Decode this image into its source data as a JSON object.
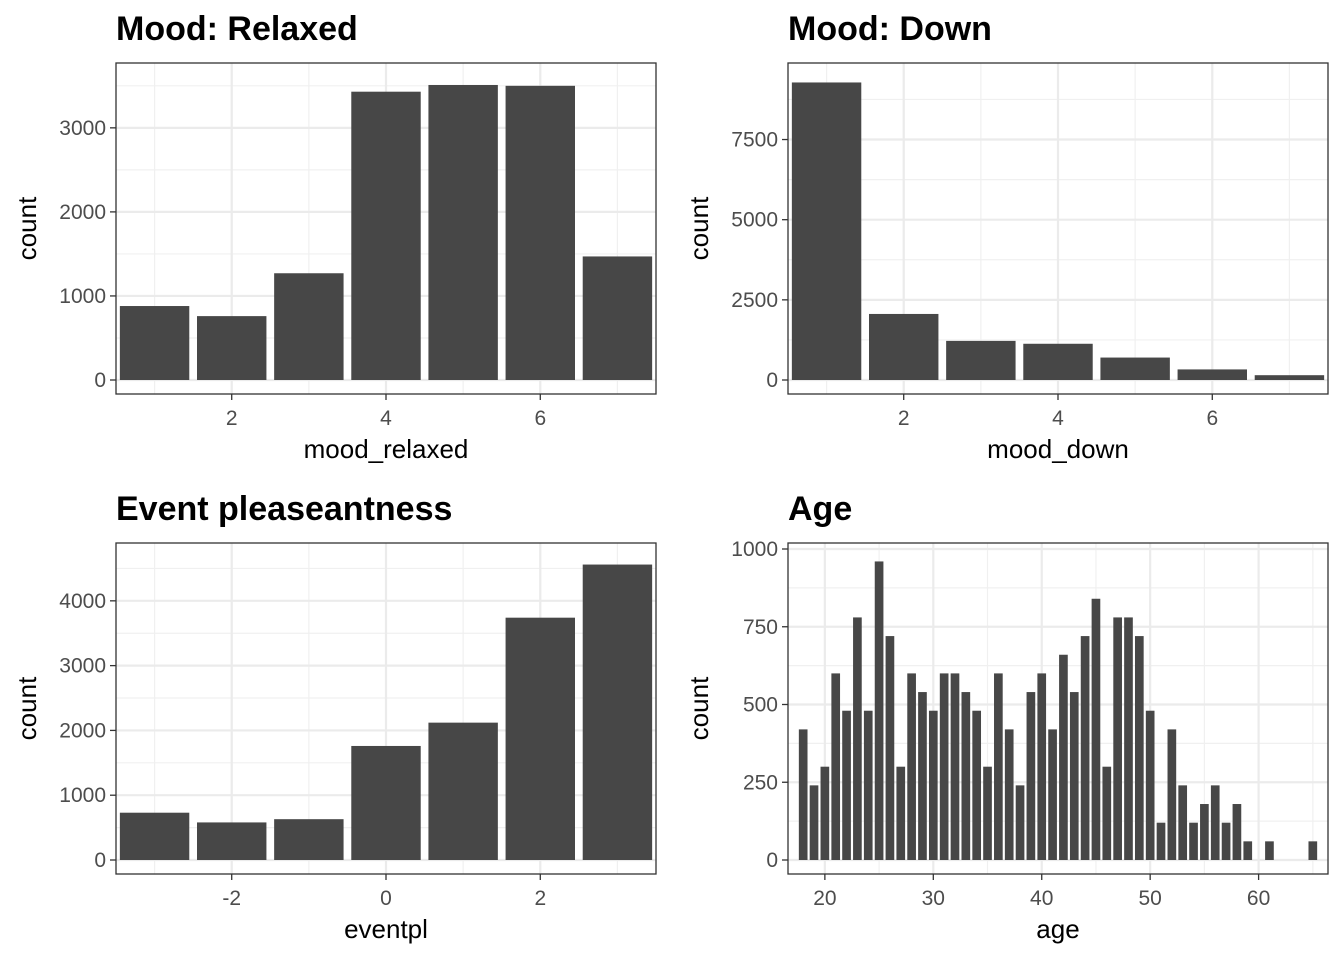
{
  "chart_data": [
    {
      "type": "bar",
      "title": "Mood: Relaxed",
      "xlabel": "mood_relaxed",
      "ylabel": "count",
      "x": [
        1,
        2,
        3,
        4,
        5,
        6,
        7
      ],
      "values": [
        880,
        760,
        1270,
        3430,
        3510,
        3500,
        1470
      ],
      "xlim": [
        0.5,
        7.5
      ],
      "ylim": [
        0,
        3700
      ],
      "xticks": [
        2,
        4,
        6
      ],
      "xtick_labels": [
        "2",
        "4",
        "6"
      ],
      "yticks": [
        0,
        1000,
        2000,
        3000
      ],
      "ytick_labels": [
        "0",
        "1000",
        "2000",
        "3000"
      ],
      "grid": true,
      "bar_color": "#474747"
    },
    {
      "type": "bar",
      "title": "Mood: Down",
      "xlabel": "mood_down",
      "ylabel": "count",
      "x": [
        1,
        2,
        3,
        4,
        5,
        6,
        7
      ],
      "values": [
        9280,
        2060,
        1220,
        1130,
        700,
        330,
        150
      ],
      "xlim": [
        0.5,
        7.5
      ],
      "ylim": [
        0,
        9700
      ],
      "xticks": [
        2,
        4,
        6
      ],
      "xtick_labels": [
        "2",
        "4",
        "6"
      ],
      "yticks": [
        0,
        2500,
        5000,
        7500
      ],
      "ytick_labels": [
        "0",
        "2500",
        "5000",
        "7500"
      ],
      "grid": true,
      "bar_color": "#474747"
    },
    {
      "type": "bar",
      "title": "Event pleaseantness",
      "xlabel": "eventpl",
      "ylabel": "count",
      "x": [
        -3,
        -2,
        -1,
        0,
        1,
        2,
        3
      ],
      "values": [
        730,
        580,
        630,
        1760,
        2120,
        3740,
        4560
      ],
      "xlim": [
        -3.5,
        3.5
      ],
      "ylim": [
        0,
        4800
      ],
      "xticks": [
        -2,
        0,
        2
      ],
      "xtick_labels": [
        "-2",
        "0",
        "2"
      ],
      "yticks": [
        0,
        1000,
        2000,
        3000,
        4000
      ],
      "ytick_labels": [
        "0",
        "1000",
        "2000",
        "3000",
        "4000"
      ],
      "grid": true,
      "bar_color": "#474747"
    },
    {
      "type": "bar",
      "title": "Age",
      "xlabel": "age",
      "ylabel": "count",
      "x": [
        18,
        19,
        20,
        21,
        22,
        23,
        24,
        25,
        26,
        27,
        28,
        29,
        30,
        31,
        32,
        33,
        34,
        35,
        36,
        37,
        38,
        39,
        40,
        41,
        42,
        43,
        44,
        45,
        46,
        47,
        48,
        49,
        50,
        51,
        52,
        53,
        54,
        55,
        56,
        57,
        58,
        59,
        61,
        65
      ],
      "values": [
        420,
        240,
        300,
        600,
        480,
        780,
        480,
        960,
        720,
        300,
        600,
        540,
        480,
        600,
        600,
        540,
        480,
        300,
        600,
        420,
        240,
        540,
        600,
        420,
        660,
        540,
        720,
        840,
        300,
        780,
        780,
        720,
        480,
        120,
        420,
        240,
        120,
        180,
        240,
        120,
        180,
        60,
        60,
        60
      ],
      "bar_width": 0.8,
      "xlim": [
        16.6,
        66.4
      ],
      "ylim": [
        0,
        1000
      ],
      "xticks": [
        20,
        30,
        40,
        50,
        60
      ],
      "xtick_labels": [
        "20",
        "30",
        "40",
        "50",
        "60"
      ],
      "yticks": [
        0,
        250,
        500,
        750,
        1000
      ],
      "ytick_labels": [
        "0",
        "250",
        "500",
        "750",
        "1000"
      ],
      "grid": true,
      "bar_color": "#474747"
    }
  ]
}
